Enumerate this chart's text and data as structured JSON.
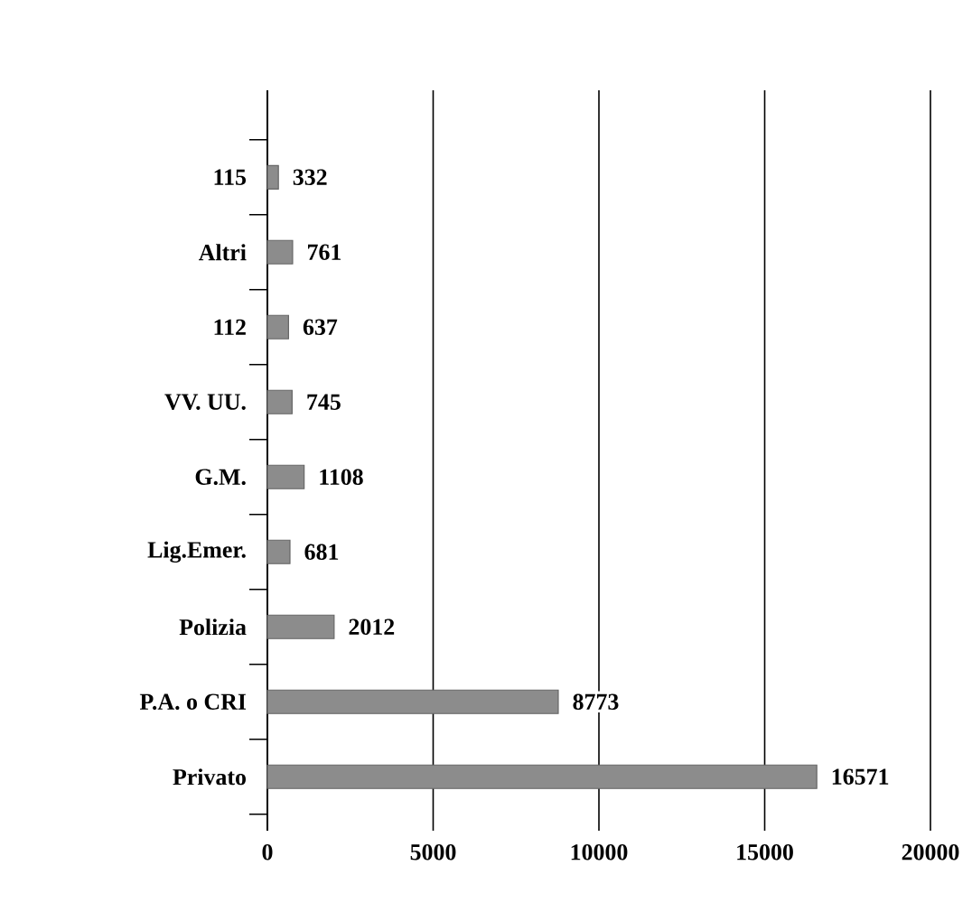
{
  "chart_data": {
    "type": "bar",
    "orientation": "horizontal",
    "categories": [
      "115",
      "Altri",
      "112",
      "VV. UU.",
      "G.M.",
      "Lig.Emer.",
      "Polizia",
      "P.A. o CRI",
      "Privato"
    ],
    "values": [
      332,
      761,
      637,
      745,
      1108,
      681,
      2012,
      8773,
      16571
    ],
    "color": "#8c8c8c",
    "xlim": [
      0,
      20000
    ],
    "xticks": [
      0,
      5000,
      10000,
      15000,
      20000
    ],
    "grid": "x",
    "data_labels": true
  }
}
